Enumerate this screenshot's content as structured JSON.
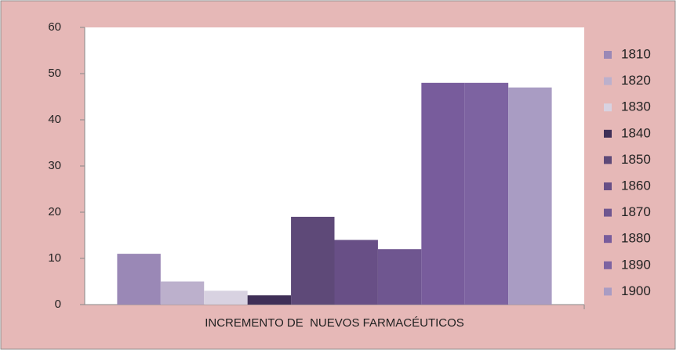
{
  "chart_data": {
    "type": "bar",
    "categories": [
      "INCREMENTO DE  NUEVOS FARMACÉUTICOS"
    ],
    "series": [
      {
        "name": "1810",
        "color": "#9a88b6",
        "values": [
          11
        ]
      },
      {
        "name": "1820",
        "color": "#bcb0cc",
        "values": [
          5
        ]
      },
      {
        "name": "1830",
        "color": "#d8d2e1",
        "values": [
          3
        ]
      },
      {
        "name": "1840",
        "color": "#3f2f57",
        "values": [
          2
        ]
      },
      {
        "name": "1850",
        "color": "#5e4978",
        "values": [
          19
        ]
      },
      {
        "name": "1860",
        "color": "#684f86",
        "values": [
          14
        ]
      },
      {
        "name": "1870",
        "color": "#6f5690",
        "values": [
          12
        ]
      },
      {
        "name": "1880",
        "color": "#785c9c",
        "values": [
          48
        ]
      },
      {
        "name": "1890",
        "color": "#7d63a1",
        "values": [
          48
        ]
      },
      {
        "name": "1900",
        "color": "#a99cc3",
        "values": [
          47
        ]
      }
    ],
    "ylim": [
      0,
      60
    ],
    "yticks": [
      0,
      10,
      20,
      30,
      40,
      50,
      60
    ],
    "legend": "right"
  }
}
